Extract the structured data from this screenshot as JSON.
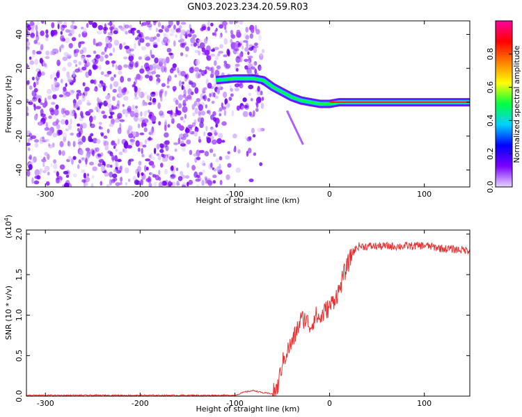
{
  "title": "GN03.2023.234.20.59.R03",
  "chart_data": [
    {
      "type": "heatmap",
      "xlabel": "Height of straight line (km)",
      "ylabel": "Frequency (Hz)",
      "xlim": [
        -320,
        148
      ],
      "ylim": [
        -50,
        48
      ],
      "x_ticks": [
        -300,
        -200,
        -100,
        0,
        100
      ],
      "x_tick_labels": [
        "-300",
        "-200",
        "-100",
        "0",
        "100"
      ],
      "y_ticks": [
        -40,
        -20,
        0,
        20,
        40
      ],
      "y_tick_labels": [
        "-40",
        "-20",
        "0",
        "20",
        "40"
      ],
      "noise_region_x": [
        -320,
        -70
      ],
      "ridge": {
        "x": [
          -120,
          -100,
          -80,
          -70,
          -60,
          -50,
          -40,
          -30,
          -20,
          -10,
          0,
          10,
          20,
          148
        ],
        "y": [
          13,
          14,
          14,
          13,
          9,
          6,
          3,
          1,
          0,
          -1,
          -1,
          0,
          0,
          0
        ]
      },
      "tail_segment": {
        "x": [
          -45,
          -28
        ],
        "y": [
          -5,
          -25
        ]
      },
      "colorbar": {
        "label": "Normalized spectral amplitude",
        "range": [
          0,
          1
        ],
        "ticks": [
          0,
          0.2,
          0.4,
          0.6,
          0.8
        ],
        "tick_labels": [
          "0.0",
          "0.2",
          "0.4",
          "0.6",
          "0.8"
        ],
        "colors": [
          "#e8d8ff",
          "#7a00ff",
          "#0000ff",
          "#00d0ff",
          "#00ff40",
          "#ffff00",
          "#ff8000",
          "#ff0000",
          "#ff00a0"
        ]
      }
    },
    {
      "type": "line",
      "xlabel": "Height of straight line (km)",
      "ylabel": "SNR (10 * v/v)",
      "y_multiplier": "(x10",
      "y_multiplier_exp": "4",
      "y_multiplier_close": ")",
      "xlim": [
        -320,
        148
      ],
      "ylim": [
        0,
        2.05
      ],
      "x_ticks": [
        -300,
        -200,
        -100,
        0,
        100
      ],
      "x_tick_labels": [
        "-300",
        "-200",
        "-100",
        "0",
        "100"
      ],
      "y_ticks": [
        0,
        0.5,
        1.0,
        1.5,
        2.0
      ],
      "y_tick_labels": [
        "0.0",
        "0.5",
        "1.0",
        "1.5",
        "2.0"
      ],
      "line_color": "#e83030",
      "series": [
        {
          "x": [
            -320,
            -200,
            -100,
            -90,
            -80,
            -70,
            -60,
            -55,
            -50,
            -45,
            -40,
            -35,
            -30,
            -25,
            -20,
            -15,
            -10,
            -5,
            0,
            5,
            10,
            15,
            20,
            25,
            30,
            40,
            60,
            80,
            100,
            120,
            148
          ],
          "values": [
            0.01,
            0.01,
            0.01,
            0.05,
            0.07,
            0.04,
            0.03,
            0.1,
            0.4,
            0.55,
            0.65,
            0.8,
            0.95,
            0.95,
            0.85,
            1.0,
            0.95,
            1.05,
            1.1,
            1.2,
            1.3,
            1.5,
            1.65,
            1.78,
            1.85,
            1.85,
            1.85,
            1.85,
            1.86,
            1.82,
            1.8
          ]
        }
      ]
    }
  ]
}
